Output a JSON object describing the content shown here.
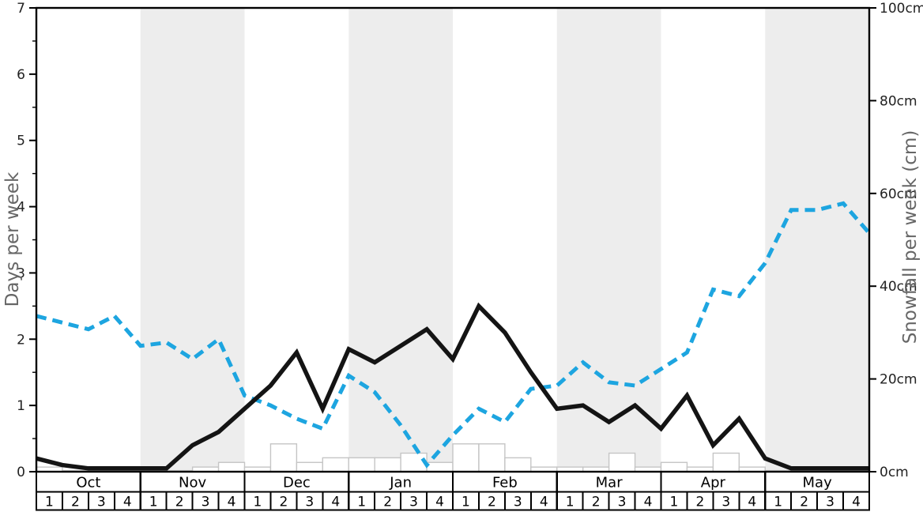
{
  "chart_data": {
    "type": "line",
    "title": "",
    "description_visible_text_only": "",
    "months": [
      "Oct",
      "Nov",
      "Dec",
      "Jan",
      "Feb",
      "Mar",
      "Apr",
      "May"
    ],
    "week_numbers": [
      "1",
      "2",
      "3",
      "4"
    ],
    "shaded_months": [
      "Nov",
      "Jan",
      "Mar",
      "May"
    ],
    "left_axis": {
      "label": "Days per week",
      "min": 0,
      "max": 7,
      "tick_values": [
        0,
        1,
        2,
        3,
        4,
        5,
        6,
        7
      ],
      "tick_labels": [
        "0",
        "1",
        "2",
        "3",
        "4",
        "5",
        "6",
        "7"
      ],
      "minor_tick_step": 0.5
    },
    "right_axis": {
      "label": "Snowfall per week (cm)",
      "min": 0,
      "max": 100,
      "tick_values": [
        0,
        20,
        40,
        60,
        80,
        100
      ],
      "tick_labels": [
        "0cm",
        "20cm",
        "40cm",
        "60cm",
        "80cm",
        "100cm"
      ]
    },
    "x_layout": {
      "weeks_total": 32,
      "points_per_series": 33,
      "note": "line vertices sit on week-cell boundaries from Oct week 1 to end of May week 4"
    },
    "series": [
      {
        "name": "blue-dashed-line",
        "style": "dashed",
        "color": "#1da5e0",
        "axis": "left",
        "values": [
          2.35,
          2.25,
          2.15,
          2.35,
          1.9,
          1.95,
          1.7,
          2.0,
          1.15,
          1.0,
          0.8,
          0.65,
          1.45,
          1.2,
          0.7,
          0.1,
          0.55,
          0.95,
          0.75,
          1.25,
          1.3,
          1.65,
          1.35,
          1.3,
          1.55,
          1.8,
          2.75,
          2.65,
          3.15,
          3.95,
          3.95,
          4.05,
          3.6
        ]
      },
      {
        "name": "black-solid-line",
        "style": "solid",
        "color": "#141414",
        "axis": "left",
        "values": [
          0.2,
          0.1,
          0.05,
          0.05,
          0.05,
          0.05,
          0.4,
          0.6,
          0.95,
          1.3,
          1.8,
          0.95,
          1.85,
          1.65,
          1.9,
          2.15,
          1.7,
          2.5,
          2.1,
          1.5,
          0.95,
          1.0,
          0.75,
          1.0,
          0.65,
          1.15,
          0.4,
          0.8,
          0.2,
          0.05,
          0.05,
          0.05,
          0.05
        ]
      }
    ],
    "bars": {
      "name": "snowfall-bars",
      "axis": "right",
      "unit": "cm",
      "values_cm": [
        1,
        0,
        0,
        0,
        0,
        0,
        1,
        2,
        1,
        6,
        2,
        3,
        3,
        3,
        4,
        2,
        6,
        6,
        3,
        1,
        1,
        1,
        4,
        1,
        2,
        1,
        4,
        1,
        0,
        0,
        0,
        0
      ]
    },
    "colors": {
      "band_gray": "#ededed",
      "bar_fill": "#ffffff",
      "bar_stroke": "#c5c5c5",
      "table_border": "#000000",
      "tick_label": "#222222",
      "axis_title": "#666666",
      "spine": "#000000"
    }
  }
}
